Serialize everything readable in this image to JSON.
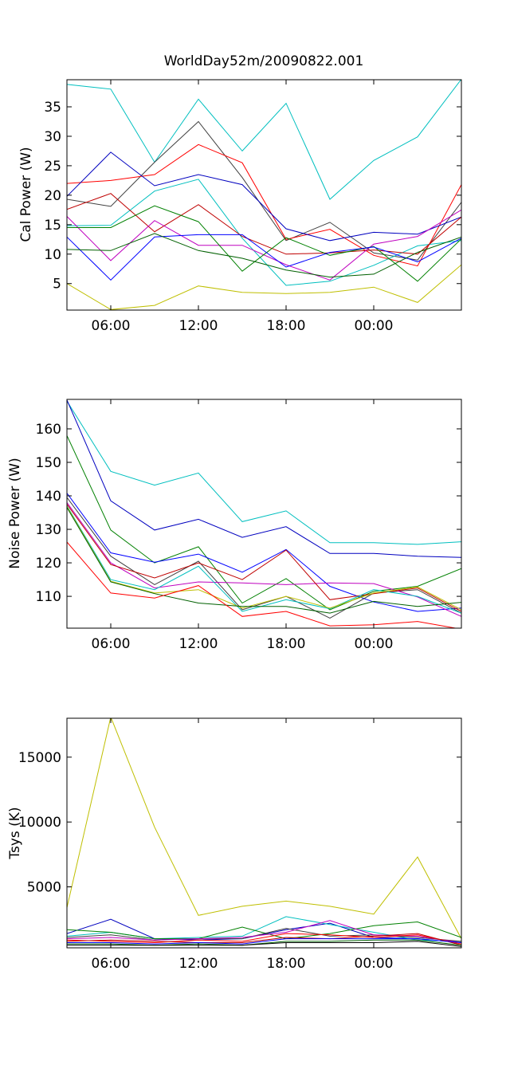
{
  "chart_data": [
    {
      "type": "line",
      "title": "WorldDay52m/20090822.001",
      "xlabel": "",
      "ylabel": "Cal Power (W)",
      "x": [
        0,
        1,
        2,
        3,
        4,
        5,
        6,
        7,
        8,
        9
      ],
      "x_tick_positions": [
        1,
        3,
        5,
        7
      ],
      "x_tick_labels": [
        "06:00",
        "12:00",
        "18:00",
        "00:00"
      ],
      "xlim": [
        0,
        9
      ],
      "ylim": [
        0.5,
        39.6
      ],
      "y_ticks": [
        5,
        10,
        15,
        20,
        25,
        30,
        35
      ],
      "grid": false,
      "series": [
        {
          "color": "#00bfbf",
          "values": [
            38.8,
            38.0,
            25.6,
            36.3,
            27.5,
            35.6,
            19.3,
            25.9,
            29.9,
            39.7
          ]
        },
        {
          "color": "#404040",
          "values": [
            19.3,
            18.1,
            25.6,
            32.5,
            23.0,
            12.3,
            15.4,
            10.2,
            9.0,
            18.8
          ]
        },
        {
          "color": "#ff0000",
          "values": [
            22.0,
            22.5,
            23.5,
            28.6,
            25.5,
            12.5,
            14.2,
            9.8,
            8.0,
            21.8
          ]
        },
        {
          "color": "#0000bf",
          "values": [
            19.8,
            27.3,
            21.6,
            23.5,
            21.8,
            14.3,
            12.3,
            13.7,
            13.4,
            16.3
          ]
        },
        {
          "color": "#00bfbf",
          "values": [
            14.8,
            14.9,
            20.7,
            22.7,
            12.7,
            4.7,
            5.4,
            8.1,
            11.4,
            12.3
          ]
        },
        {
          "color": "#bf0000",
          "values": [
            17.6,
            20.3,
            13.8,
            18.4,
            13.0,
            10.0,
            10.2,
            10.7,
            10.0,
            16.3
          ]
        },
        {
          "color": "#bf00bf",
          "values": [
            16.4,
            8.9,
            15.7,
            11.5,
            11.5,
            8.2,
            5.6,
            11.7,
            13.0,
            17.5
          ]
        },
        {
          "color": "#008000",
          "values": [
            14.5,
            14.5,
            18.2,
            15.5,
            7.1,
            12.8,
            9.8,
            11.3,
            5.4,
            12.6
          ]
        },
        {
          "color": "#0000ff",
          "values": [
            12.9,
            5.6,
            12.9,
            13.3,
            13.3,
            7.8,
            10.3,
            11.2,
            8.7,
            12.7
          ]
        },
        {
          "color": "#006000",
          "values": [
            10.8,
            10.6,
            13.5,
            10.6,
            9.3,
            7.3,
            6.1,
            6.6,
            10.3,
            12.9
          ]
        },
        {
          "color": "#bfbf00",
          "values": [
            5.0,
            0.6,
            1.3,
            4.6,
            3.5,
            3.3,
            3.5,
            4.4,
            1.8,
            8.2
          ]
        }
      ]
    },
    {
      "type": "line",
      "title": "",
      "xlabel": "",
      "ylabel": "Noise Power (W)",
      "x": [
        0,
        1,
        2,
        3,
        4,
        5,
        6,
        7,
        8,
        9
      ],
      "x_tick_positions": [
        1,
        3,
        5,
        7
      ],
      "x_tick_labels": [
        "06:00",
        "12:00",
        "18:00",
        "00:00"
      ],
      "xlim": [
        0,
        9
      ],
      "ylim": [
        100.5,
        168.8
      ],
      "y_ticks": [
        110,
        120,
        130,
        140,
        150,
        160
      ],
      "grid": false,
      "series": [
        {
          "color": "#00bfbf",
          "values": [
            168.3,
            147.3,
            143.2,
            146.8,
            132.3,
            135.5,
            126.0,
            126.0,
            125.5,
            126.3
          ]
        },
        {
          "color": "#0000bf",
          "values": [
            168.6,
            138.5,
            129.8,
            133.0,
            127.6,
            130.8,
            122.8,
            122.8,
            122.0,
            121.6
          ]
        },
        {
          "color": "#008000",
          "values": [
            158.0,
            129.8,
            120.0,
            124.8,
            108.0,
            115.3,
            106.0,
            111.5,
            113.0,
            118.3
          ]
        },
        {
          "color": "#0000ff",
          "values": [
            140.8,
            123.0,
            120.2,
            122.6,
            117.2,
            124.0,
            113.0,
            108.3,
            105.5,
            106.5
          ]
        },
        {
          "color": "#404040",
          "values": [
            139.5,
            122.0,
            113.5,
            120.5,
            106.0,
            110.0,
            103.5,
            111.0,
            112.0,
            105.0
          ]
        },
        {
          "color": "#bf00bf",
          "values": [
            138.0,
            120.0,
            112.5,
            114.3,
            114.0,
            113.5,
            114.0,
            113.8,
            109.8,
            104.0
          ]
        },
        {
          "color": "#bf0000",
          "values": [
            137.5,
            119.5,
            115.5,
            120.0,
            115.0,
            123.8,
            109.0,
            110.8,
            112.5,
            105.5
          ]
        },
        {
          "color": "#00bfbf",
          "values": [
            137.0,
            115.0,
            112.0,
            119.0,
            105.5,
            109.0,
            106.3,
            112.0,
            110.0,
            105.0
          ]
        },
        {
          "color": "#bfbf00",
          "values": [
            136.8,
            114.5,
            111.0,
            112.0,
            106.5,
            110.0,
            106.5,
            111.0,
            112.8,
            106.0
          ]
        },
        {
          "color": "#006000",
          "values": [
            136.5,
            114.3,
            110.8,
            108.0,
            107.0,
            107.0,
            105.0,
            108.5,
            107.0,
            108.2
          ]
        },
        {
          "color": "#ff0000",
          "values": [
            126.2,
            111.0,
            109.5,
            113.2,
            104.0,
            105.5,
            101.2,
            101.5,
            102.5,
            100.2
          ]
        }
      ]
    },
    {
      "type": "line",
      "title": "",
      "xlabel": "",
      "ylabel": "Tsys (K)",
      "x": [
        0,
        1,
        2,
        3,
        4,
        5,
        6,
        7,
        8,
        9
      ],
      "x_tick_positions": [
        1,
        3,
        5,
        7
      ],
      "x_tick_labels": [
        "06:00",
        "12:00",
        "18:00",
        "00:00"
      ],
      "xlim": [
        0,
        9
      ],
      "ylim": [
        300,
        18000
      ],
      "y_ticks": [
        5000,
        10000,
        15000
      ],
      "grid": false,
      "series": [
        {
          "color": "#bfbf00",
          "values": [
            3400,
            18100,
            9600,
            2800,
            3500,
            3900,
            3500,
            2900,
            7300,
            1000
          ]
        },
        {
          "color": "#0000bf",
          "values": [
            1400,
            2500,
            1000,
            900,
            1000,
            1700,
            2200,
            1100,
            1000,
            700
          ]
        },
        {
          "color": "#00bfbf",
          "values": [
            1200,
            1500,
            1000,
            1100,
            1200,
            2700,
            2100,
            1500,
            900,
            800
          ]
        },
        {
          "color": "#008000",
          "values": [
            1700,
            1500,
            1000,
            1000,
            1900,
            1000,
            1400,
            2000,
            2300,
            1100
          ]
        },
        {
          "color": "#404040",
          "values": [
            1100,
            1300,
            900,
            1000,
            1000,
            1800,
            1200,
            1300,
            1100,
            800
          ]
        },
        {
          "color": "#bf00bf",
          "values": [
            1000,
            1100,
            900,
            1000,
            1100,
            1500,
            2400,
            1300,
            1200,
            700
          ]
        },
        {
          "color": "#ff0000",
          "values": [
            900,
            800,
            700,
            900,
            800,
            1400,
            1300,
            1100,
            1300,
            600
          ]
        },
        {
          "color": "#bf0000",
          "values": [
            800,
            900,
            800,
            700,
            700,
            1100,
            1000,
            1200,
            1400,
            500
          ]
        },
        {
          "color": "#0000ff",
          "values": [
            700,
            700,
            600,
            700,
            600,
            1000,
            1000,
            1000,
            1000,
            700
          ]
        },
        {
          "color": "#006000",
          "values": [
            600,
            600,
            500,
            600,
            500,
            800,
            800,
            900,
            900,
            500
          ]
        },
        {
          "color": "#000000",
          "values": [
            500,
            500,
            500,
            500,
            500,
            700,
            700,
            700,
            800,
            400
          ]
        }
      ]
    }
  ]
}
